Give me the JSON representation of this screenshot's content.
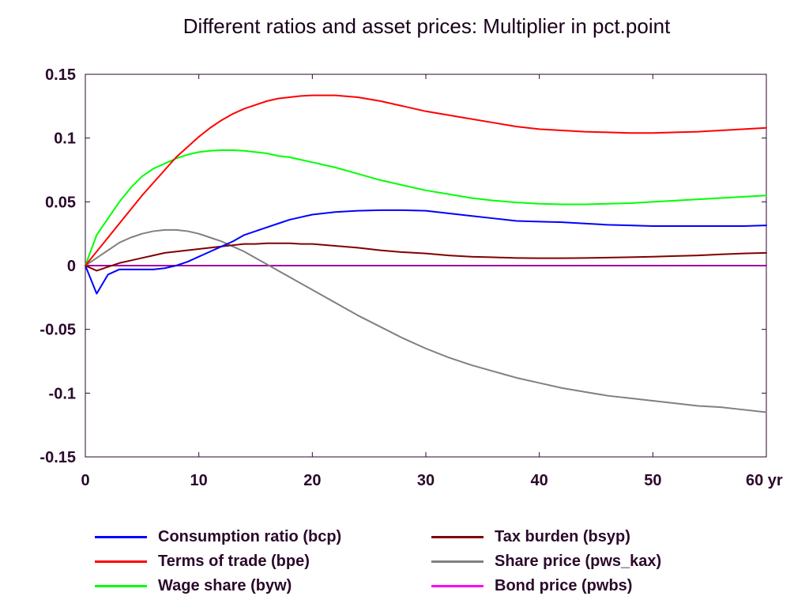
{
  "chart_data": {
    "type": "line",
    "title": "Different ratios and asset prices: Multiplier in pct.point",
    "xlabel": "",
    "ylabel": "",
    "x_unit": "yr",
    "xlim": [
      0,
      60
    ],
    "ylim": [
      -0.15,
      0.15
    ],
    "x_ticks": [
      "0",
      "10",
      "20",
      "30",
      "40",
      "50",
      "60 yr"
    ],
    "y_ticks": [
      "0.15",
      "0.1",
      "0.05",
      "0",
      "-0.05",
      "-0.1",
      "-0.15"
    ],
    "grid": false,
    "legend_position": "bottom",
    "x": [
      0,
      1,
      2,
      3,
      4,
      5,
      6,
      7,
      8,
      9,
      10,
      11,
      12,
      13,
      14,
      15,
      16,
      17,
      18,
      19,
      20,
      22,
      24,
      26,
      28,
      30,
      32,
      34,
      36,
      38,
      40,
      42,
      44,
      46,
      48,
      50,
      52,
      54,
      56,
      58,
      60
    ],
    "series": [
      {
        "name": "Consumption ratio (bcp)",
        "color": "#0000ff",
        "values": [
          0,
          -0.022,
          -0.007,
          -0.003,
          -0.003,
          -0.003,
          -0.003,
          -0.002,
          0.0,
          0.003,
          0.007,
          0.011,
          0.015,
          0.019,
          0.024,
          0.027,
          0.03,
          0.033,
          0.036,
          0.038,
          0.04,
          0.042,
          0.043,
          0.0435,
          0.0435,
          0.043,
          0.041,
          0.039,
          0.037,
          0.035,
          0.0345,
          0.034,
          0.033,
          0.032,
          0.0315,
          0.031,
          0.031,
          0.031,
          0.031,
          0.031,
          0.0315
        ]
      },
      {
        "name": "Terms of trade (bpe)",
        "color": "#ff0000",
        "values": [
          0,
          0.011,
          0.022,
          0.033,
          0.044,
          0.055,
          0.065,
          0.075,
          0.085,
          0.093,
          0.101,
          0.108,
          0.114,
          0.119,
          0.123,
          0.126,
          0.129,
          0.131,
          0.132,
          0.133,
          0.1335,
          0.1335,
          0.132,
          0.129,
          0.125,
          0.121,
          0.118,
          0.115,
          0.112,
          0.109,
          0.107,
          0.106,
          0.105,
          0.1045,
          0.104,
          0.104,
          0.1045,
          0.105,
          0.106,
          0.107,
          0.108
        ]
      },
      {
        "name": "Wage share (byw)",
        "color": "#00ff00",
        "values": [
          0,
          0.024,
          0.037,
          0.05,
          0.061,
          0.07,
          0.076,
          0.08,
          0.084,
          0.087,
          0.089,
          0.09,
          0.0905,
          0.0905,
          0.09,
          0.089,
          0.088,
          0.086,
          0.085,
          0.083,
          0.081,
          0.077,
          0.072,
          0.067,
          0.063,
          0.059,
          0.056,
          0.053,
          0.051,
          0.0495,
          0.0485,
          0.048,
          0.048,
          0.0485,
          0.049,
          0.05,
          0.051,
          0.052,
          0.053,
          0.054,
          0.055
        ]
      },
      {
        "name": "Tax burden (bsyp)",
        "color": "#800000",
        "values": [
          0,
          -0.004,
          -0.001,
          0.002,
          0.004,
          0.006,
          0.008,
          0.01,
          0.011,
          0.012,
          0.013,
          0.014,
          0.015,
          0.016,
          0.017,
          0.017,
          0.0175,
          0.0175,
          0.0175,
          0.017,
          0.017,
          0.0155,
          0.014,
          0.012,
          0.0105,
          0.0095,
          0.008,
          0.007,
          0.0065,
          0.006,
          0.0058,
          0.0058,
          0.006,
          0.0063,
          0.0066,
          0.007,
          0.0075,
          0.008,
          0.0088,
          0.0095,
          0.01
        ]
      },
      {
        "name": "Share price (pws_kax)",
        "color": "#808080",
        "values": [
          0,
          0.006,
          0.012,
          0.018,
          0.022,
          0.025,
          0.027,
          0.028,
          0.028,
          0.027,
          0.025,
          0.022,
          0.019,
          0.015,
          0.011,
          0.006,
          0.001,
          -0.004,
          -0.009,
          -0.014,
          -0.019,
          -0.029,
          -0.039,
          -0.048,
          -0.057,
          -0.065,
          -0.072,
          -0.078,
          -0.083,
          -0.088,
          -0.092,
          -0.096,
          -0.099,
          -0.102,
          -0.104,
          -0.106,
          -0.108,
          -0.11,
          -0.111,
          -0.113,
          -0.115
        ]
      },
      {
        "name": "Bond price (pwbs)",
        "color": "#a000a0",
        "values": [
          0,
          0,
          0,
          0,
          0,
          0,
          0,
          0,
          0,
          0,
          0,
          0,
          0,
          0,
          0,
          0,
          0,
          0,
          0,
          0,
          0,
          0,
          0,
          0,
          0,
          0,
          0,
          0,
          0,
          0,
          0,
          0,
          0,
          0,
          0,
          0,
          0,
          0,
          0,
          0,
          0
        ]
      }
    ]
  },
  "legend": {
    "items": [
      {
        "label": "Consumption ratio (bcp)",
        "color": "#0000ff"
      },
      {
        "label": "Terms of trade (bpe)",
        "color": "#ff0000"
      },
      {
        "label": "Wage share (byw)",
        "color": "#00ff00"
      },
      {
        "label": "Tax burden (bsyp)",
        "color": "#800000"
      },
      {
        "label": "Share price (pws_kax)",
        "color": "#808080"
      },
      {
        "label": "Bond price (pwbs)",
        "color": "#ff00ff"
      }
    ]
  }
}
